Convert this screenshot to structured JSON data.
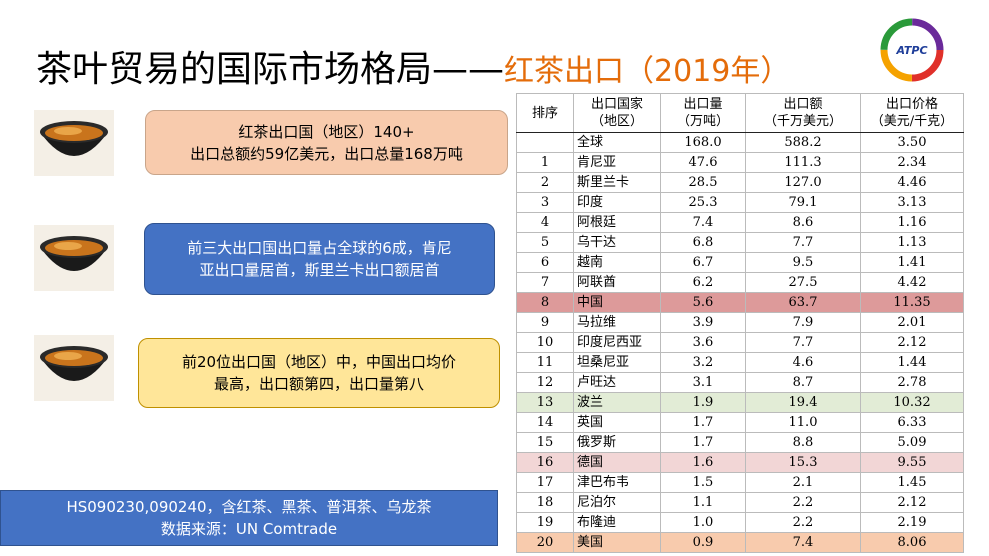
{
  "header": {
    "title": "茶叶贸易的国际市场格局——",
    "subtitle": "红茶出口（2019年）",
    "logo": "ATPC"
  },
  "notes": [
    [
      "红茶出口国（地区）140+",
      "出口总额约59亿美元，出口总量168万吨"
    ],
    [
      "前三大出口国出口量占全球的6成，肯尼",
      "亚出口量居首，斯里兰卡出口额居首"
    ],
    [
      "前20位出口国（地区）中，中国出口均价",
      "最高，出口额第四，出口量第八"
    ]
  ],
  "footer": [
    "HS090230,090240，含红茶、黑茶、普洱茶、乌龙茶",
    "数据来源：UN Comtrade"
  ],
  "table": {
    "columns": [
      [
        "排序"
      ],
      [
        "出口国家",
        "（地区）"
      ],
      [
        "出口量",
        "（万吨）"
      ],
      [
        "出口额",
        "（千万美元）"
      ],
      [
        "出口价格",
        "（美元/千克）"
      ]
    ],
    "rows": [
      [
        null,
        "全球",
        "168.0",
        "588.2",
        "3.50"
      ],
      [
        "1",
        "肯尼亚",
        "47.6",
        "111.3",
        "2.34"
      ],
      [
        "2",
        "斯里兰卡",
        "28.5",
        "127.0",
        "4.46"
      ],
      [
        "3",
        "印度",
        "25.3",
        "79.1",
        "3.13"
      ],
      [
        "4",
        "阿根廷",
        "7.4",
        "8.6",
        "1.16"
      ],
      [
        "5",
        "乌干达",
        "6.8",
        "7.7",
        "1.13"
      ],
      [
        "6",
        "越南",
        "6.7",
        "9.5",
        "1.41"
      ],
      [
        "7",
        "阿联酋",
        "6.2",
        "27.5",
        "4.42"
      ],
      [
        "8",
        "中国",
        "5.6",
        "63.7",
        "11.35"
      ],
      [
        "9",
        "马拉维",
        "3.9",
        "7.9",
        "2.01"
      ],
      [
        "10",
        "印度尼西亚",
        "3.6",
        "7.7",
        "2.12"
      ],
      [
        "11",
        "坦桑尼亚",
        "3.2",
        "4.6",
        "1.44"
      ],
      [
        "12",
        "卢旺达",
        "3.1",
        "8.7",
        "2.78"
      ],
      [
        "13",
        "波兰",
        "1.9",
        "19.4",
        "10.32"
      ],
      [
        "14",
        "英国",
        "1.7",
        "11.0",
        "6.33"
      ],
      [
        "15",
        "俄罗斯",
        "1.7",
        "8.8",
        "5.09"
      ],
      [
        "16",
        "德国",
        "1.6",
        "15.3",
        "9.55"
      ],
      [
        "17",
        "津巴布韦",
        "1.5",
        "2.1",
        "1.45"
      ],
      [
        "18",
        "尼泊尔",
        "1.1",
        "2.2",
        "2.12"
      ],
      [
        "19",
        "布隆迪",
        "1.0",
        "2.2",
        "2.19"
      ],
      [
        "20",
        "美国",
        "0.9",
        "7.4",
        "8.06"
      ]
    ]
  }
}
